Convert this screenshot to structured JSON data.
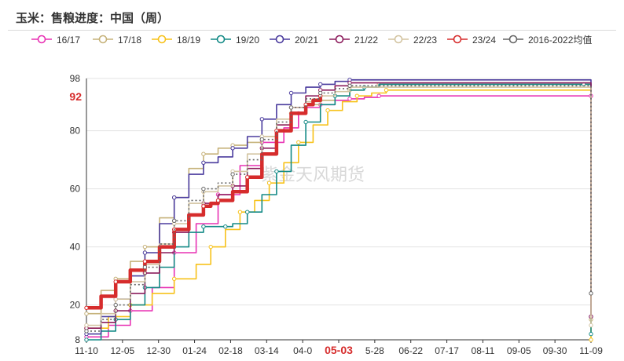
{
  "header": {
    "title": "玉米：售粮进度：中国（周）"
  },
  "watermark": "紫金天风期货",
  "chart_data": {
    "type": "line",
    "title": "玉米：售粮进度：中国（周）",
    "x_ticks": [
      "11-10",
      "12-05",
      "12-30",
      "01-24",
      "02-18",
      "03-14",
      "04-0",
      "05-03",
      "5-28",
      "06-22",
      "07-17",
      "08-11",
      "09-05",
      "09-30",
      "11-09"
    ],
    "y_ticks": [
      "8",
      "20",
      "40",
      "60",
      "80",
      "98"
    ],
    "ylim": [
      8,
      98
    ],
    "highlight": {
      "x_label": "05-03",
      "y_label": "92",
      "color": "#d62c2c"
    },
    "legend_position": "top",
    "series": [
      {
        "name": "16/17",
        "color": "#e832b4",
        "dash": "",
        "width": 1.6,
        "values": [
          [
            0,
            9
          ],
          [
            3,
            13
          ],
          [
            6,
            18
          ],
          [
            9,
            26
          ],
          [
            12,
            38
          ],
          [
            15,
            48
          ],
          [
            18,
            58
          ],
          [
            21,
            68
          ],
          [
            24,
            76
          ],
          [
            27,
            81
          ],
          [
            29,
            86
          ],
          [
            30,
            88
          ],
          [
            32,
            89
          ],
          [
            34,
            90.5
          ],
          [
            36,
            91
          ],
          [
            38,
            91.5
          ],
          [
            40,
            92
          ],
          [
            68,
            92
          ],
          [
            69,
            92
          ]
        ]
      },
      {
        "name": "17/18",
        "color": "#c6b27a",
        "dash": "",
        "width": 1.6,
        "values": [
          [
            0,
            17
          ],
          [
            2,
            25
          ],
          [
            4,
            29
          ],
          [
            6,
            35
          ],
          [
            8,
            40
          ],
          [
            10,
            50
          ],
          [
            12,
            57
          ],
          [
            14,
            67
          ],
          [
            16,
            72
          ],
          [
            18,
            74
          ],
          [
            20,
            75
          ],
          [
            22,
            76
          ],
          [
            24,
            78
          ],
          [
            26,
            82
          ],
          [
            28,
            86
          ],
          [
            30,
            89
          ],
          [
            32,
            90.5
          ],
          [
            34,
            92
          ],
          [
            36,
            94
          ],
          [
            38,
            95
          ],
          [
            40,
            96
          ],
          [
            68,
            96
          ],
          [
            69,
            15
          ]
        ]
      },
      {
        "name": "18/19",
        "color": "#f7c21a",
        "dash": "",
        "width": 1.6,
        "values": [
          [
            0,
            12
          ],
          [
            3,
            16
          ],
          [
            6,
            20
          ],
          [
            9,
            24
          ],
          [
            12,
            29
          ],
          [
            15,
            34
          ],
          [
            17,
            40
          ],
          [
            19,
            46
          ],
          [
            21,
            52
          ],
          [
            23,
            56
          ],
          [
            25,
            62
          ],
          [
            27,
            69
          ],
          [
            29,
            76
          ],
          [
            31,
            82
          ],
          [
            33,
            87
          ],
          [
            35,
            90
          ],
          [
            37,
            92
          ],
          [
            39,
            93
          ],
          [
            41,
            94
          ],
          [
            68,
            94
          ],
          [
            69,
            8
          ]
        ]
      },
      {
        "name": "19/20",
        "color": "#148a86",
        "dash": "",
        "width": 1.6,
        "values": [
          [
            0,
            8
          ],
          [
            2,
            11
          ],
          [
            4,
            15
          ],
          [
            6,
            20
          ],
          [
            8,
            26
          ],
          [
            10,
            33
          ],
          [
            12,
            40
          ],
          [
            14,
            45
          ],
          [
            16,
            47
          ],
          [
            18,
            47
          ],
          [
            19,
            47
          ],
          [
            20,
            48
          ],
          [
            22,
            52
          ],
          [
            24,
            58
          ],
          [
            26,
            66
          ],
          [
            28,
            75
          ],
          [
            30,
            83
          ],
          [
            32,
            89
          ],
          [
            34,
            92
          ],
          [
            36,
            94
          ],
          [
            38,
            95
          ],
          [
            40,
            96
          ],
          [
            68,
            96
          ],
          [
            69,
            10
          ]
        ]
      },
      {
        "name": "20/21",
        "color": "#4b3c9e",
        "dash": "",
        "width": 1.6,
        "values": [
          [
            0,
            10
          ],
          [
            2,
            16
          ],
          [
            4,
            22
          ],
          [
            6,
            30
          ],
          [
            8,
            38
          ],
          [
            10,
            48
          ],
          [
            12,
            57
          ],
          [
            14,
            65
          ],
          [
            16,
            69
          ],
          [
            18,
            71
          ],
          [
            20,
            74
          ],
          [
            22,
            78
          ],
          [
            24,
            84
          ],
          [
            26,
            89
          ],
          [
            28,
            93
          ],
          [
            30,
            95
          ],
          [
            32,
            96
          ],
          [
            34,
            97
          ],
          [
            36,
            97.5
          ],
          [
            68,
            97.5
          ],
          [
            69,
            16
          ]
        ]
      },
      {
        "name": "21/22",
        "color": "#8c1c5c",
        "dash": "",
        "width": 1.6,
        "values": [
          [
            0,
            12
          ],
          [
            2,
            14
          ],
          [
            4,
            18
          ],
          [
            6,
            24
          ],
          [
            8,
            31
          ],
          [
            10,
            38
          ],
          [
            12,
            45
          ],
          [
            14,
            51
          ],
          [
            16,
            55
          ],
          [
            18,
            58
          ],
          [
            20,
            61
          ],
          [
            22,
            67
          ],
          [
            24,
            74
          ],
          [
            26,
            82
          ],
          [
            28,
            88
          ],
          [
            30,
            92
          ],
          [
            32,
            94
          ],
          [
            34,
            95.5
          ],
          [
            36,
            96.5
          ],
          [
            68,
            96.5
          ],
          [
            69,
            16
          ]
        ]
      },
      {
        "name": "22/23",
        "color": "#d3c4a1",
        "dash": "",
        "width": 1.6,
        "values": [
          [
            0,
            13
          ],
          [
            2,
            17
          ],
          [
            4,
            22
          ],
          [
            6,
            28
          ],
          [
            8,
            34
          ],
          [
            10,
            41
          ],
          [
            12,
            48
          ],
          [
            14,
            55
          ],
          [
            16,
            59
          ],
          [
            18,
            61
          ],
          [
            20,
            66
          ],
          [
            22,
            72
          ],
          [
            24,
            78
          ],
          [
            26,
            84
          ],
          [
            28,
            88
          ],
          [
            30,
            90
          ],
          [
            32,
            92
          ],
          [
            34,
            93.5
          ],
          [
            36,
            95
          ],
          [
            68,
            95
          ],
          [
            69,
            13
          ]
        ]
      },
      {
        "name": "23/24",
        "color": "#d62c2c",
        "dash": "",
        "width": 4.5,
        "values": [
          [
            0,
            19
          ],
          [
            2,
            23
          ],
          [
            4,
            28
          ],
          [
            6,
            32
          ],
          [
            8,
            35
          ],
          [
            10,
            40
          ],
          [
            12,
            46
          ],
          [
            14,
            51
          ],
          [
            16,
            54
          ],
          [
            17,
            55
          ],
          [
            18,
            56
          ],
          [
            20,
            59
          ],
          [
            22,
            64
          ],
          [
            24,
            72
          ],
          [
            26,
            80
          ],
          [
            28,
            86
          ],
          [
            30,
            89
          ],
          [
            31,
            90.5
          ],
          [
            32,
            92
          ]
        ]
      },
      {
        "name": "2016-2022均值",
        "color": "#666666",
        "dash": "2,3",
        "width": 1.6,
        "values": [
          [
            0,
            11
          ],
          [
            2,
            15
          ],
          [
            4,
            20
          ],
          [
            6,
            27
          ],
          [
            8,
            33
          ],
          [
            10,
            41
          ],
          [
            12,
            49
          ],
          [
            14,
            56
          ],
          [
            16,
            60
          ],
          [
            18,
            62
          ],
          [
            20,
            65
          ],
          [
            22,
            70
          ],
          [
            24,
            77
          ],
          [
            26,
            83
          ],
          [
            28,
            88
          ],
          [
            30,
            91
          ],
          [
            32,
            93
          ],
          [
            34,
            94.5
          ],
          [
            36,
            95.5
          ],
          [
            68,
            95.5
          ],
          [
            69,
            24
          ]
        ]
      }
    ]
  }
}
